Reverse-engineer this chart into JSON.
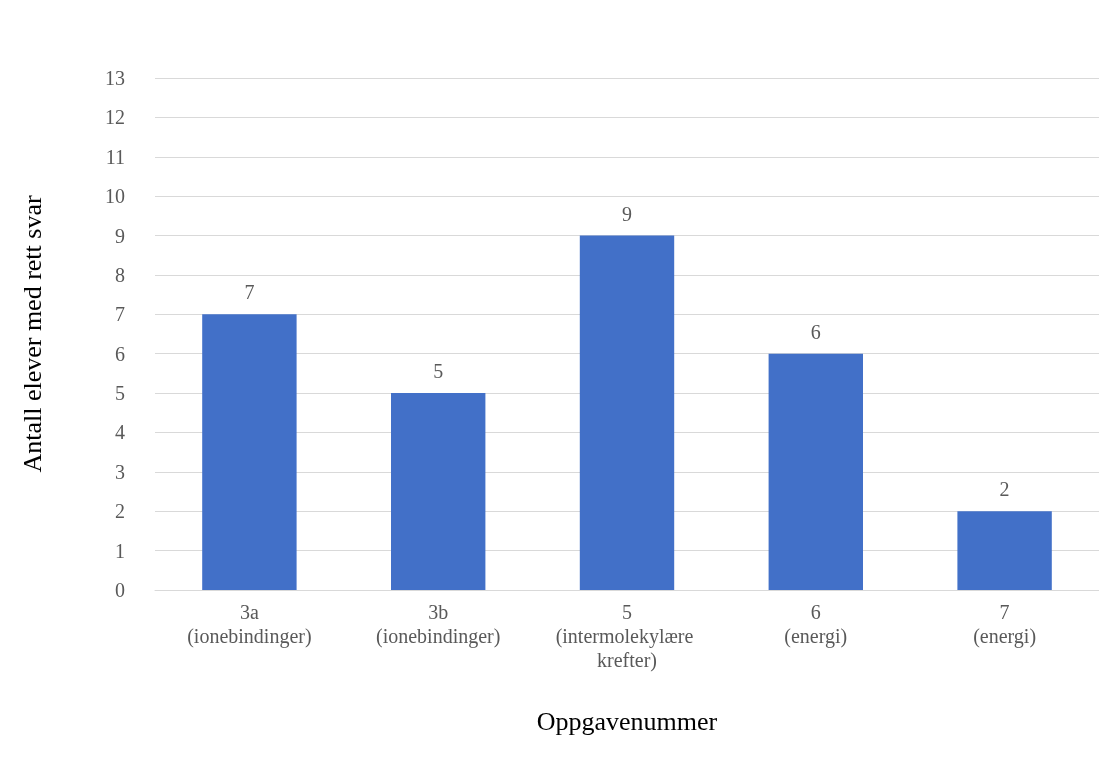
{
  "chart_data": {
    "type": "bar",
    "xlabel": "Oppgavenummer",
    "ylabel": "Antall elever med rett svar",
    "categories": [
      "3a (ionebindinger)",
      "3b (ionebindinger)",
      "5 (intermolekylære krefter)",
      "6 (energi)",
      "7 (energi)"
    ],
    "values": [
      7,
      5,
      9,
      6,
      2
    ],
    "color": "#4270c8",
    "ylim": [
      0,
      13
    ],
    "yticks": [
      0,
      1,
      2,
      3,
      4,
      5,
      6,
      7,
      8,
      9,
      10,
      11,
      12,
      13
    ],
    "grid": "y",
    "data_labels": true
  }
}
